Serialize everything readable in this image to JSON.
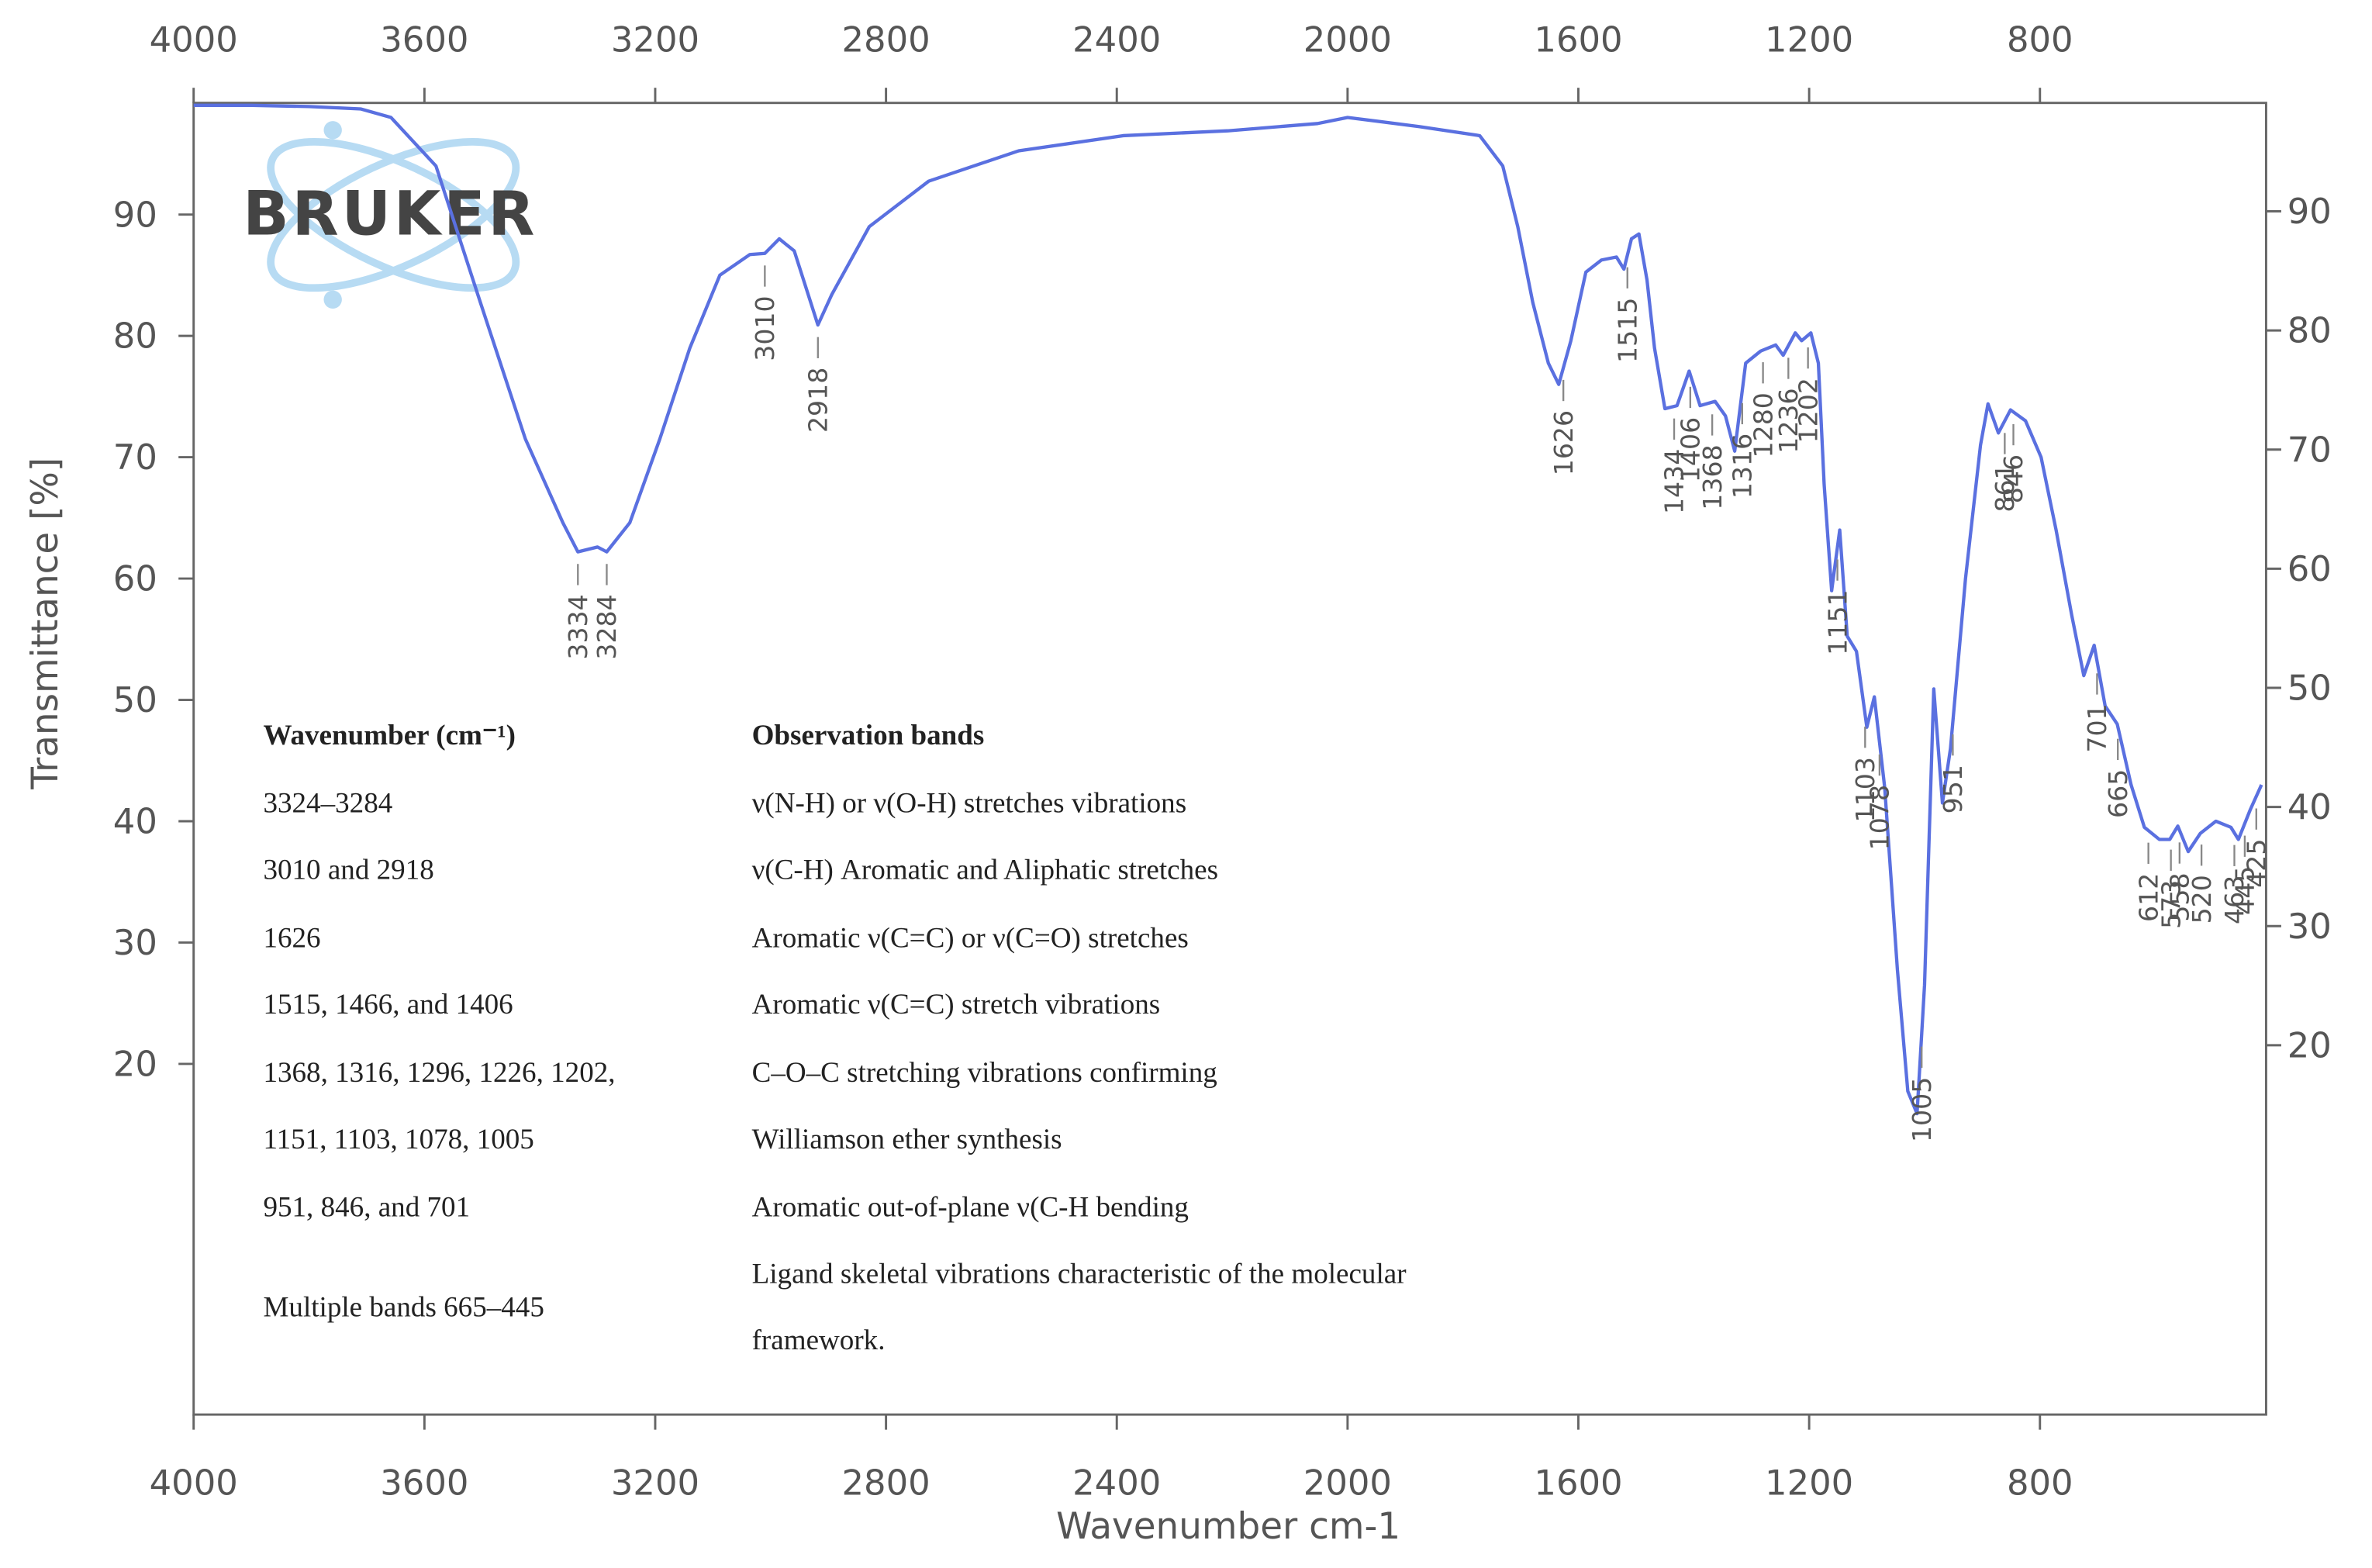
{
  "chart_data": {
    "type": "line",
    "logo": "BRUKER",
    "xlabel": "Wavenumber cm-1",
    "ylabel": "Transmittance [%]",
    "xlim": [
      4000,
      408
    ],
    "xticks": [
      4000,
      3600,
      3200,
      2800,
      2400,
      2000,
      1600,
      1200,
      800
    ],
    "x2ticks": [
      4000,
      3600,
      3200,
      2800,
      2400,
      2000,
      1600,
      1200,
      800
    ],
    "ylim": [
      -8.9,
      99.2
    ],
    "yticks": [
      20,
      30,
      40,
      50,
      60,
      70,
      80,
      90
    ],
    "y2lim": [
      -11,
      99.1
    ],
    "y2ticks": [
      20,
      30,
      40,
      50,
      60,
      70,
      80,
      90
    ],
    "x": [
      4000,
      3900,
      3800,
      3710,
      3658,
      3580,
      3503,
      3425,
      3360,
      3334,
      3300,
      3284,
      3244,
      3192,
      3140,
      3088,
      3036,
      3010,
      2985,
      2959,
      2918,
      2894,
      2829,
      2726,
      2570,
      2389,
      2208,
      2052,
      2000,
      1876,
      1771,
      1731,
      1705,
      1679,
      1652,
      1634,
      1613,
      1587,
      1560,
      1534,
      1521,
      1508,
      1495,
      1481,
      1468,
      1450,
      1429,
      1408,
      1389,
      1363,
      1345,
      1329,
      1310,
      1284,
      1258,
      1245,
      1224,
      1213,
      1197,
      1184,
      1174,
      1161,
      1147,
      1134,
      1118,
      1100,
      1087,
      1069,
      1047,
      1029,
      1013,
      1000,
      984,
      969,
      955,
      929,
      903,
      890,
      872,
      851,
      825,
      798,
      772,
      745,
      724,
      706,
      687,
      666,
      642,
      619,
      593,
      575,
      561,
      543,
      522,
      495,
      469,
      456,
      435,
      416
    ],
    "series": [
      {
        "color": "#5a70e0",
        "values": [
          99,
          99,
          98.9,
          98.7,
          98,
          94,
          82.75,
          71.5,
          64.6,
          62.2,
          62.6,
          62.2,
          64.6,
          71.5,
          79,
          85,
          86.7,
          86.8,
          88,
          87,
          80.9,
          83.4,
          89,
          92.75,
          95.25,
          96.5,
          96.9,
          97.5,
          98,
          97.25,
          96.5,
          94,
          89,
          82.75,
          77.75,
          76,
          79.6,
          85.25,
          86.25,
          86.5,
          85.5,
          88,
          88.4,
          84.6,
          79,
          74,
          74.25,
          77.1,
          74.25,
          74.6,
          73.4,
          70.5,
          77.75,
          78.75,
          79.25,
          78.4,
          80.25,
          79.6,
          80.25,
          77.75,
          67.75,
          59,
          64,
          55.25,
          54,
          47.75,
          50.25,
          42.75,
          27.75,
          17.75,
          15.9,
          26.5,
          50.9,
          41.5,
          46,
          60,
          71,
          74.4,
          72,
          73.9,
          73,
          70,
          64,
          57,
          52,
          54.5,
          49.5,
          48,
          43,
          39.5,
          38.5,
          38.5,
          39.6,
          37.5,
          39,
          40,
          39.5,
          38.5,
          41,
          43
        ]
      }
    ],
    "peaks": [
      3334,
      3284,
      3010,
      2918,
      1626,
      1515,
      1434,
      1406,
      1368,
      1316,
      1280,
      1236,
      1202,
      1151,
      1103,
      1078,
      1005,
      951,
      861,
      846,
      701,
      665,
      612,
      573,
      558,
      520,
      463,
      445,
      425
    ]
  },
  "table": {
    "columns": [
      "Wavenumber (cm⁻¹)",
      "Observation bands"
    ],
    "rows": [
      [
        "3324–3284",
        "ν(N-H) or ν(O-H) stretches vibrations"
      ],
      [
        "3010 and 2918",
        "ν(C-H) Aromatic and Aliphatic stretches"
      ],
      [
        "1626",
        "Aromatic ν(C=C) or ν(C=O) stretches"
      ],
      [
        "1515, 1466, and 1406",
        "Aromatic ν(C=C) stretch vibrations"
      ],
      [
        "1368, 1316, 1296, 1226, 1202,",
        "C–O–C stretching vibrations confirming"
      ],
      [
        "1151, 1103, 1078, 1005",
        "Williamson ether synthesis"
      ],
      [
        "951, 846, and 701",
        "Aromatic out-of-plane ν(C-H bending"
      ],
      [
        "Multiple bands 665–445",
        "Ligand skeletal vibrations characteristic of the molecular framework."
      ]
    ]
  }
}
